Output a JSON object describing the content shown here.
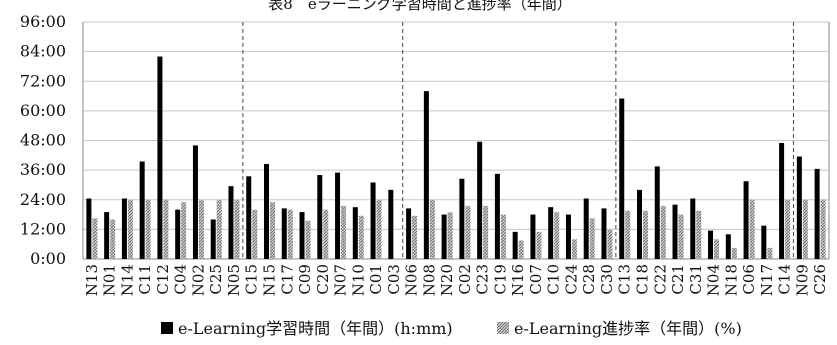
{
  "chart_data": {
    "type": "bar",
    "title": "表8　eラーニング学習時間と進捗率（年間）",
    "categories": [
      "N13",
      "N01",
      "N14",
      "C11",
      "C12",
      "C04",
      "N02",
      "C25",
      "N05",
      "C15",
      "N15",
      "C17",
      "C09",
      "C20",
      "N07",
      "N10",
      "C01",
      "C03",
      "N06",
      "N08",
      "N20",
      "C02",
      "C23",
      "C19",
      "N16",
      "C07",
      "C10",
      "C24",
      "C28",
      "C30",
      "C13",
      "C18",
      "C22",
      "C21",
      "C31",
      "N04",
      "N18",
      "C06",
      "N17",
      "C14",
      "N09",
      "C26"
    ],
    "y_ticks": [
      "0:00",
      "12:00",
      "24:00",
      "36:00",
      "48:00",
      "60:00",
      "72:00",
      "84:00",
      "96:00"
    ],
    "ylim": [
      0,
      96
    ],
    "ylim_units": "hours",
    "group_separators_after": [
      "N05",
      "C03",
      "C30",
      "C14"
    ],
    "series": [
      {
        "name": "e-Learning学習時間（年間）(h:mm)",
        "color": "#000000",
        "pattern": "solid",
        "values": [
          24.5,
          19,
          24.5,
          39.5,
          82,
          20,
          46,
          16,
          29.5,
          33.5,
          38.5,
          20.5,
          19,
          34,
          35,
          21,
          31,
          28,
          20.5,
          68,
          18,
          32.5,
          47.5,
          34.5,
          11,
          18,
          21,
          18,
          24.5,
          20.5,
          65,
          28,
          37.5,
          22,
          24.5,
          11.5,
          10,
          31.5,
          13.5,
          47,
          41.5,
          36.5
        ]
      },
      {
        "name": "e-Learning進捗率（年間）(%)",
        "color": "#8c8c8c",
        "pattern": "hatched",
        "values": [
          16.5,
          16,
          24,
          24,
          24,
          23,
          24,
          24,
          24,
          20,
          23,
          20,
          15.5,
          20,
          21.5,
          17.5,
          24,
          0,
          17.5,
          24,
          19,
          21.5,
          21.5,
          18,
          7.5,
          11,
          19,
          8,
          16.5,
          12,
          19.5,
          19.5,
          21.5,
          18,
          19.5,
          8,
          4.5,
          24,
          4.5,
          24,
          24,
          24
        ]
      }
    ],
    "legend_position": "bottom",
    "grid": true
  }
}
